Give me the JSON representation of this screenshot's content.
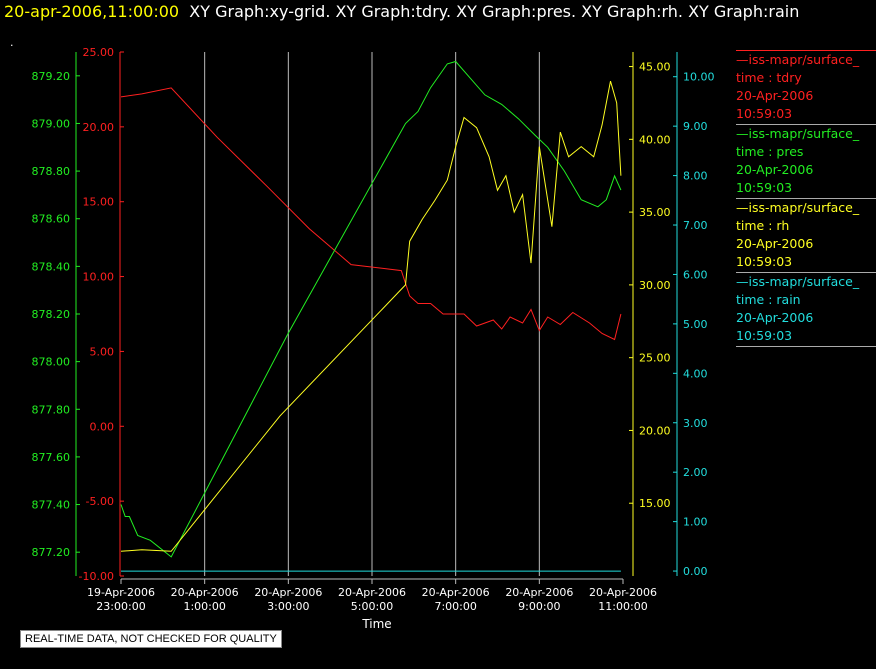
{
  "header": {
    "timestamp": "20-apr-2006,11:00:00",
    "titles": "XY Graph:xy-grid.  XY Graph:tdry.  XY Graph:pres.  XY Graph:rh.  XY Graph:rain"
  },
  "corner_mark": ".",
  "quality_notice": "REAL-TIME DATA, NOT CHECKED FOR QUALITY",
  "colors": {
    "tdry": "#ff2020",
    "pres": "#22ee22",
    "rh": "#ffff22",
    "rain": "#22dddd",
    "grid": "#bbbbbb"
  },
  "legend": [
    {
      "head": "—iss-mapr/surface_",
      "var": "time : tdry",
      "date": "20-Apr-2006",
      "time": "10:59:03"
    },
    {
      "head": "—iss-mapr/surface_",
      "var": "time : pres",
      "date": "20-Apr-2006",
      "time": "10:59:03"
    },
    {
      "head": "—iss-mapr/surface_",
      "var": "time : rh",
      "date": "20-Apr-2006",
      "time": "10:59:03"
    },
    {
      "head": "—iss-mapr/surface_",
      "var": "time : rain",
      "date": "20-Apr-2006",
      "time": "10:59:03"
    }
  ],
  "chart_data": {
    "type": "line",
    "xlabel": "Time",
    "x_unit": "hours",
    "xlim": [
      -1.0,
      11.0
    ],
    "x_ticks": [
      {
        "x": -1,
        "date": "19-Apr-2006",
        "time": "23:00:00"
      },
      {
        "x": 1,
        "date": "20-Apr-2006",
        "time": "1:00:00"
      },
      {
        "x": 3,
        "date": "20-Apr-2006",
        "time": "3:00:00"
      },
      {
        "x": 5,
        "date": "20-Apr-2006",
        "time": "5:00:00"
      },
      {
        "x": 7,
        "date": "20-Apr-2006",
        "time": "7:00:00"
      },
      {
        "x": 9,
        "date": "20-Apr-2006",
        "time": "9:00:00"
      },
      {
        "x": 11,
        "date": "20-Apr-2006",
        "time": "11:00:00"
      }
    ],
    "axes": {
      "pres": {
        "ylim": [
          877.1,
          879.3
        ],
        "ticks": [
          "877.20",
          "877.40",
          "877.60",
          "877.80",
          "878.00",
          "878.20",
          "878.40",
          "878.60",
          "878.80",
          "879.00",
          "879.20"
        ]
      },
      "tdry": {
        "ylim": [
          -10,
          25
        ],
        "ticks": [
          "-10.00",
          "-5.00",
          "0.00",
          "5.00",
          "10.00",
          "15.00",
          "20.00",
          "25.00"
        ]
      },
      "rh": {
        "ylim": [
          10,
          46
        ],
        "ticks": [
          "15.00",
          "20.00",
          "25.00",
          "30.00",
          "35.00",
          "40.00",
          "45.00"
        ]
      },
      "rain": {
        "ylim": [
          -0.1,
          10.5
        ],
        "ticks": [
          "0.00",
          "1.00",
          "2.00",
          "3.00",
          "4.00",
          "5.00",
          "6.00",
          "7.00",
          "8.00",
          "9.00",
          "10.00"
        ]
      }
    },
    "series": [
      {
        "name": "tdry",
        "axis": "tdry",
        "points": [
          [
            -1,
            22.0
          ],
          [
            -0.5,
            22.2
          ],
          [
            0.2,
            22.6
          ],
          [
            1.3,
            19.3
          ],
          [
            2.5,
            16.0
          ],
          [
            3.5,
            13.2
          ],
          [
            4.5,
            10.8
          ],
          [
            5.7,
            10.4
          ],
          [
            5.9,
            8.7
          ],
          [
            6.1,
            8.2
          ],
          [
            6.4,
            8.2
          ],
          [
            6.7,
            7.5
          ],
          [
            7.2,
            7.5
          ],
          [
            7.5,
            6.7
          ],
          [
            7.9,
            7.1
          ],
          [
            8.1,
            6.5
          ],
          [
            8.3,
            7.3
          ],
          [
            8.6,
            6.9
          ],
          [
            8.8,
            7.8
          ],
          [
            9.0,
            6.4
          ],
          [
            9.2,
            7.3
          ],
          [
            9.5,
            6.8
          ],
          [
            9.8,
            7.6
          ],
          [
            10.2,
            6.9
          ],
          [
            10.5,
            6.2
          ],
          [
            10.8,
            5.8
          ],
          [
            10.95,
            7.5
          ]
        ]
      },
      {
        "name": "pres",
        "axis": "pres",
        "points": [
          [
            -1,
            877.4
          ],
          [
            -0.9,
            877.35
          ],
          [
            -0.8,
            877.35
          ],
          [
            -0.6,
            877.27
          ],
          [
            -0.3,
            877.25
          ],
          [
            0.2,
            877.18
          ],
          [
            3.0,
            878.12
          ],
          [
            5.8,
            879.0
          ],
          [
            6.1,
            879.05
          ],
          [
            6.4,
            879.15
          ],
          [
            6.8,
            879.25
          ],
          [
            7.0,
            879.26
          ],
          [
            7.3,
            879.2
          ],
          [
            7.7,
            879.12
          ],
          [
            8.1,
            879.08
          ],
          [
            8.5,
            879.02
          ],
          [
            8.9,
            878.95
          ],
          [
            9.2,
            878.9
          ],
          [
            9.6,
            878.8
          ],
          [
            10.0,
            878.68
          ],
          [
            10.4,
            878.65
          ],
          [
            10.6,
            878.68
          ],
          [
            10.8,
            878.78
          ],
          [
            10.95,
            878.72
          ]
        ]
      },
      {
        "name": "rh",
        "axis": "rh",
        "points": [
          [
            -1,
            11.7
          ],
          [
            -0.5,
            11.8
          ],
          [
            0.2,
            11.7
          ],
          [
            2.8,
            21.0
          ],
          [
            5.8,
            30.0
          ],
          [
            5.9,
            33.0
          ],
          [
            6.2,
            34.5
          ],
          [
            6.5,
            35.8
          ],
          [
            6.8,
            37.2
          ],
          [
            7.0,
            39.5
          ],
          [
            7.2,
            41.5
          ],
          [
            7.5,
            40.8
          ],
          [
            7.8,
            38.8
          ],
          [
            8.0,
            36.5
          ],
          [
            8.2,
            37.5
          ],
          [
            8.4,
            35.0
          ],
          [
            8.6,
            36.2
          ],
          [
            8.8,
            31.5
          ],
          [
            9.0,
            39.5
          ],
          [
            9.3,
            34.0
          ],
          [
            9.5,
            40.5
          ],
          [
            9.7,
            38.8
          ],
          [
            10.0,
            39.5
          ],
          [
            10.3,
            38.8
          ],
          [
            10.5,
            41.0
          ],
          [
            10.7,
            44.0
          ],
          [
            10.85,
            42.5
          ],
          [
            10.95,
            37.5
          ]
        ]
      },
      {
        "name": "rain",
        "axis": "rain",
        "points": [
          [
            -1,
            0.0
          ],
          [
            10.95,
            0.0
          ]
        ]
      }
    ]
  }
}
